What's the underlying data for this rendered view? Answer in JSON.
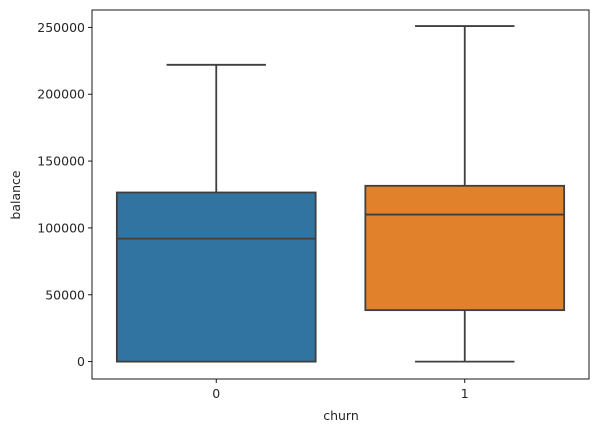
{
  "chart_data": {
    "type": "box",
    "title": "",
    "xlabel": "churn",
    "ylabel": "balance",
    "categories": [
      "0",
      "1"
    ],
    "ylim": [
      -13000,
      263000
    ],
    "yticks": [
      0,
      50000,
      100000,
      150000,
      200000,
      250000
    ],
    "ytick_labels": [
      "0",
      "50000",
      "100000",
      "150000",
      "200000",
      "250000"
    ],
    "grid": false,
    "legend": "none",
    "boxes": [
      {
        "category": "0",
        "whisker_low": 0,
        "q1": 0,
        "median": 92000,
        "q3": 126500,
        "whisker_high": 222000,
        "color": "#3274a1"
      },
      {
        "category": "1",
        "whisker_low": 0,
        "q1": 38500,
        "median": 110000,
        "q3": 131500,
        "whisker_high": 251000,
        "color": "#e1812c"
      }
    ],
    "line_color": "#3f3f3f"
  }
}
